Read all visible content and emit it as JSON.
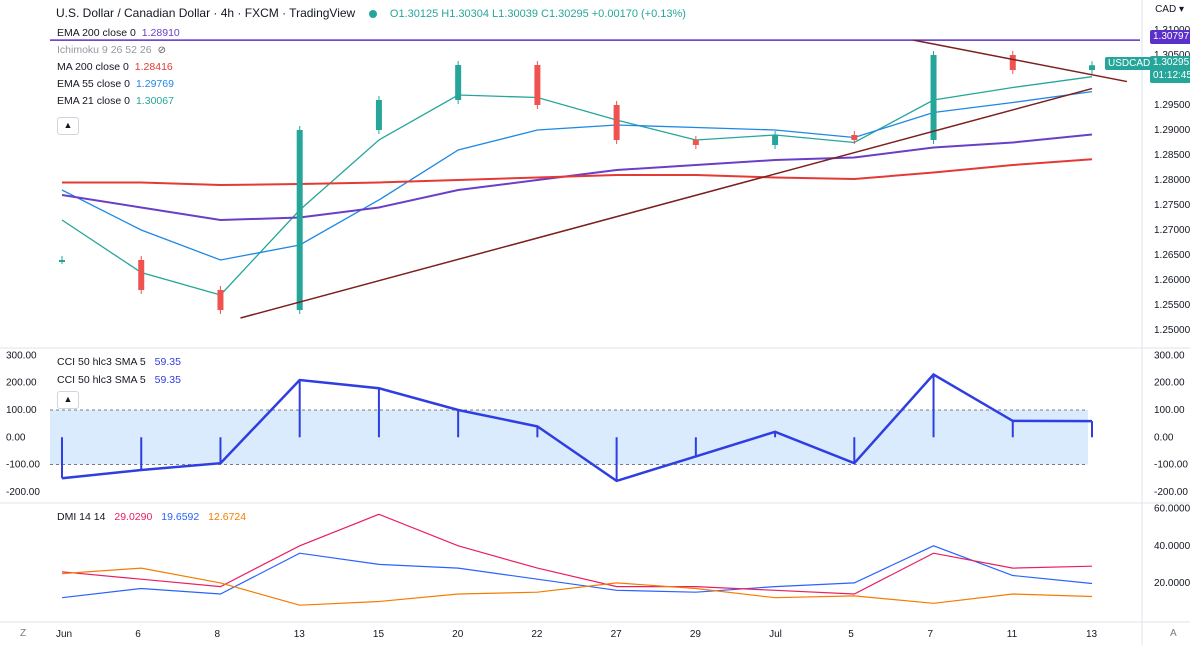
{
  "header": {
    "symbol": "U.S. Dollar / Canadian Dollar · 4h · FXCM · TradingView",
    "ohlc": "O1.30125 H1.30304 L1.30039 C1.30295 +0.00170 (+0.13%)"
  },
  "currency_label": "CAD",
  "indicators": [
    {
      "label": "EMA 200 close 0",
      "value": "1.28910",
      "color": "#6a3fc7"
    },
    {
      "label": "Ichimoku 9 26 52 26",
      "value": "",
      "color": "#9598a1"
    },
    {
      "label": "MA 200 close 0",
      "value": "1.28416",
      "color": "#e53935"
    },
    {
      "label": "EMA 55 close 0",
      "value": "1.29769",
      "color": "#1e88e5"
    },
    {
      "label": "EMA 21 close 0",
      "value": "1.30067",
      "color": "#26a69a"
    }
  ],
  "price_tags": {
    "resistance": "1.30797",
    "last": "1.30295",
    "countdown": "01:12:45",
    "symbol": "USDCAD"
  },
  "cci_legend": [
    {
      "label": "CCI 50 hlc3 SMA 5",
      "value": "59.35"
    },
    {
      "label": "CCI 50 hlc3 SMA 5",
      "value": "59.35"
    }
  ],
  "dmi_legend": {
    "label": "DMI 14 14",
    "v1": "29.0290",
    "v2": "19.6592",
    "v3": "12.6724"
  },
  "x_ticks": [
    "Jun",
    "6",
    "8",
    "13",
    "15",
    "20",
    "22",
    "27",
    "29",
    "Jul",
    "5",
    "7",
    "11",
    "13"
  ],
  "corner_left": "Z",
  "corner_right": "A",
  "colors": {
    "up": "#26a69a",
    "down": "#ef5350",
    "cci": "#2f3ee0",
    "pdi": "#2962ff",
    "mdi": "#e91e63",
    "adx": "#f57c00"
  },
  "chart_data": [
    {
      "type": "line",
      "title": "U.S. Dollar / Canadian Dollar · 4h · FXCM",
      "xlabel": "",
      "ylabel": "CAD",
      "ylim": [
        1.247,
        1.312
      ],
      "y_ticks": [
        "1.31000",
        "1.30500",
        "1.29500",
        "1.29000",
        "1.28500",
        "1.28000",
        "1.27500",
        "1.27000",
        "1.26500",
        "1.26000",
        "1.25500",
        "1.25000"
      ],
      "x": [
        "Jun 1",
        "Jun 6",
        "Jun 8",
        "Jun 13",
        "Jun 15",
        "Jun 20",
        "Jun 22",
        "Jun 27",
        "Jun 29",
        "Jul 1",
        "Jul 5",
        "Jul 7",
        "Jul 11",
        "Jul 13"
      ],
      "series": [
        {
          "name": "Close",
          "values": [
            1.264,
            1.258,
            1.254,
            1.29,
            1.296,
            1.303,
            1.295,
            1.288,
            1.287,
            1.289,
            1.288,
            1.305,
            1.302,
            1.30295
          ]
        },
        {
          "name": "EMA 21 close 0",
          "values": [
            1.272,
            1.2615,
            1.257,
            1.274,
            1.288,
            1.297,
            1.2965,
            1.292,
            1.288,
            1.289,
            1.2875,
            1.296,
            1.2985,
            1.30067
          ]
        },
        {
          "name": "EMA 55 close 0",
          "values": [
            1.278,
            1.27,
            1.264,
            1.267,
            1.276,
            1.286,
            1.29,
            1.291,
            1.2905,
            1.29,
            1.2885,
            1.2935,
            1.2955,
            1.29769
          ]
        },
        {
          "name": "EMA 200 close 0",
          "values": [
            1.277,
            1.2745,
            1.272,
            1.2725,
            1.2745,
            1.278,
            1.28,
            1.282,
            1.283,
            1.284,
            1.2845,
            1.2865,
            1.2875,
            1.2891
          ]
        },
        {
          "name": "MA 200 close 0",
          "values": [
            1.2795,
            1.2795,
            1.279,
            1.2792,
            1.2795,
            1.28,
            1.2805,
            1.281,
            1.281,
            1.2805,
            1.2802,
            1.2815,
            1.283,
            1.28416
          ]
        }
      ],
      "resistance": 1.30797
    },
    {
      "type": "line",
      "title": "CCI 50 hlc3 SMA 5",
      "ylim": [
        -230,
        320
      ],
      "y_ticks": [
        "300.00",
        "200.00",
        "100.00",
        "0.00",
        "-100.00",
        "-200.00"
      ],
      "band": [
        -100,
        100
      ],
      "x": [
        "Jun 1",
        "Jun 6",
        "Jun 8",
        "Jun 13",
        "Jun 15",
        "Jun 20",
        "Jun 22",
        "Jun 27",
        "Jun 29",
        "Jul 1",
        "Jul 5",
        "Jul 7",
        "Jul 11",
        "Jul 13"
      ],
      "series": [
        {
          "name": "CCI 50 hlc3 SMA 5",
          "values": [
            -150,
            -120,
            -95,
            210,
            180,
            100,
            40,
            -160,
            -70,
            20,
            -95,
            230,
            60,
            59.35
          ]
        }
      ]
    },
    {
      "type": "line",
      "title": "DMI 14 14",
      "ylim": [
        0,
        62
      ],
      "y_ticks": [
        "60.0000",
        "40.0000",
        "20.0000"
      ],
      "x": [
        "Jun 1",
        "Jun 6",
        "Jun 8",
        "Jun 13",
        "Jun 15",
        "Jun 20",
        "Jun 22",
        "Jun 27",
        "Jun 29",
        "Jul 1",
        "Jul 5",
        "Jul 7",
        "Jul 11",
        "Jul 13"
      ],
      "series": [
        {
          "name": "+DI",
          "values": [
            12,
            17,
            14,
            36,
            30,
            28,
            22,
            16,
            15,
            18,
            20,
            40,
            24,
            19.6592
          ]
        },
        {
          "name": "-DI",
          "values": [
            26,
            22,
            18,
            40,
            57,
            40,
            28,
            18,
            18,
            16,
            14,
            36,
            28,
            29.029
          ]
        },
        {
          "name": "ADX",
          "values": [
            25,
            28,
            20,
            8,
            10,
            14,
            15,
            20,
            17,
            12,
            13,
            9,
            14,
            12.6724
          ]
        }
      ]
    }
  ]
}
